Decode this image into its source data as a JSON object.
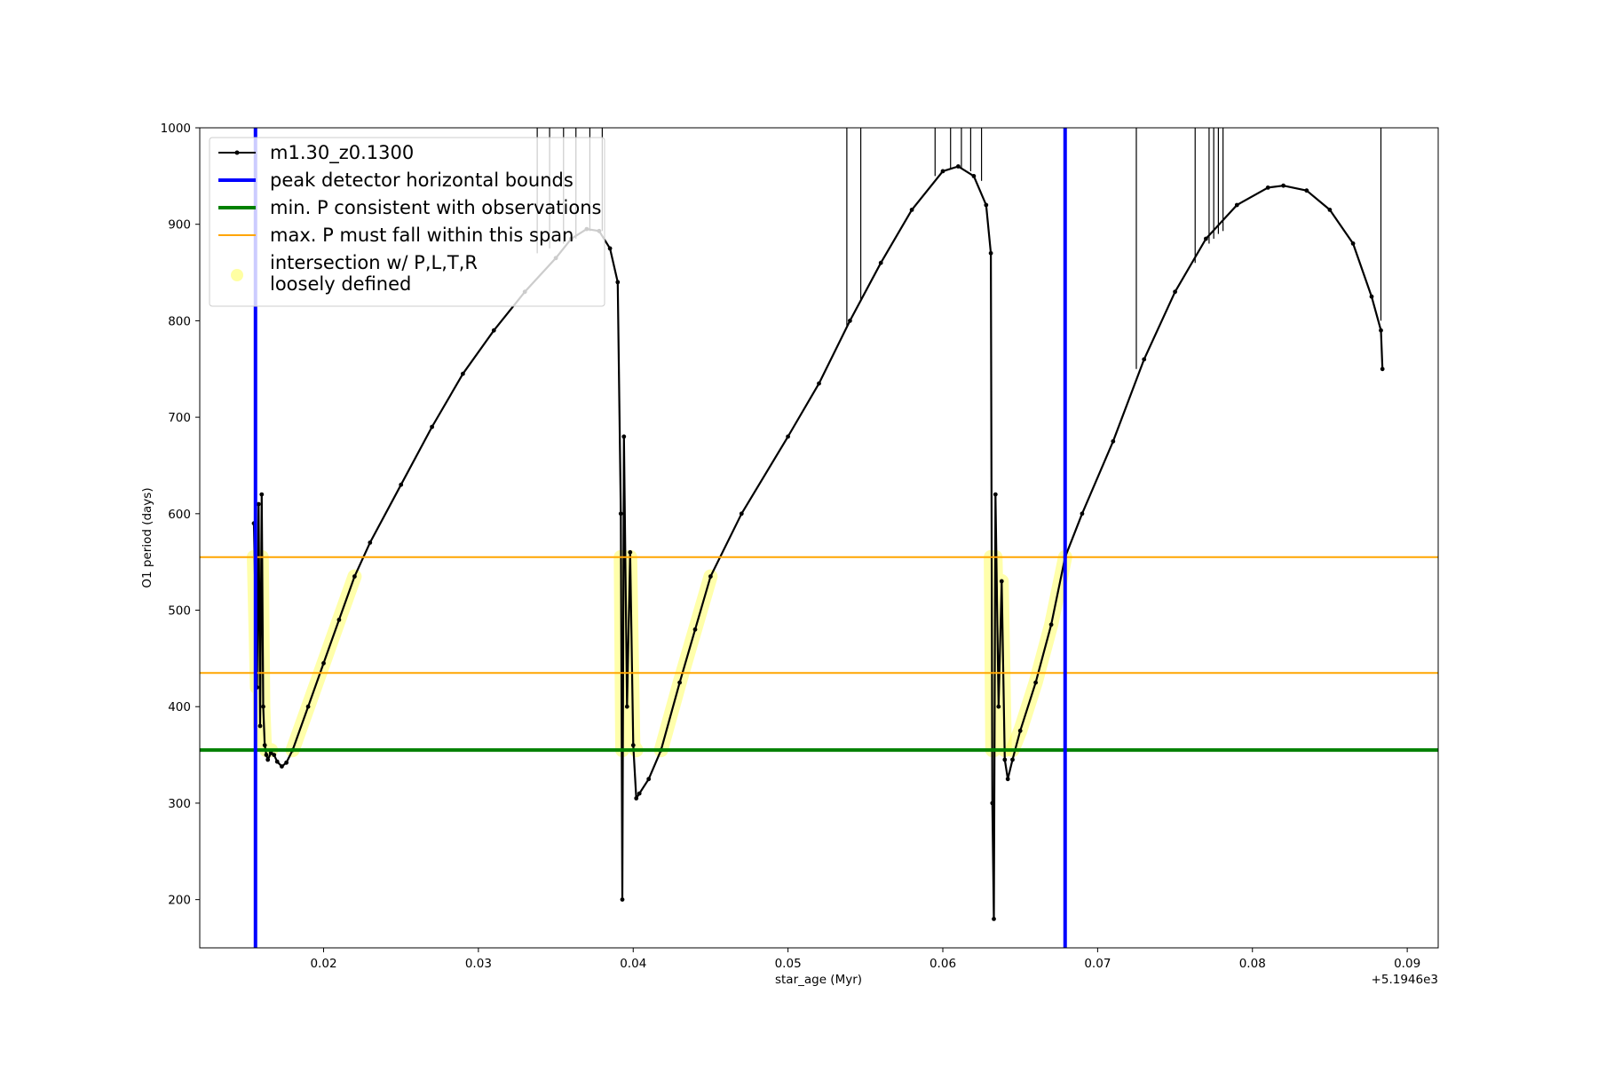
{
  "chart_data": {
    "type": "line",
    "xlabel": "star_age (Myr)",
    "ylabel": "O1 period (days)",
    "x_offset_label": "+5.1946e3",
    "xlim": [
      0.012,
      0.092
    ],
    "ylim": [
      150,
      1000
    ],
    "x_ticks": [
      0.02,
      0.03,
      0.04,
      0.05,
      0.06,
      0.07,
      0.08,
      0.09
    ],
    "x_tick_labels": [
      "0.02",
      "0.03",
      "0.04",
      "0.05",
      "0.06",
      "0.07",
      "0.08",
      "0.09"
    ],
    "y_ticks": [
      200,
      300,
      400,
      500,
      600,
      700,
      800,
      900,
      1000
    ],
    "y_tick_labels": [
      "200",
      "300",
      "400",
      "500",
      "600",
      "700",
      "800",
      "900",
      "1000"
    ],
    "grid": false,
    "legend_position": "top-left",
    "legend": [
      {
        "label": "m1.30_z0.1300",
        "kind": "line-marker",
        "color": "#000000"
      },
      {
        "label": "peak detector horizontal bounds",
        "kind": "line",
        "color": "#0000ff"
      },
      {
        "label": "min. P consistent with observations",
        "kind": "line",
        "color": "#008000"
      },
      {
        "label": "max. P must fall within this span",
        "kind": "line",
        "color": "#ffa500"
      },
      {
        "label": "intersection w/ P,L,T,R\nloosely defined",
        "kind": "marker",
        "color": "#ffff66"
      }
    ],
    "vertical_lines": [
      {
        "name": "peak detector horizontal bounds",
        "x": 0.0156,
        "color": "#0000ff"
      },
      {
        "name": "peak detector horizontal bounds",
        "x": 0.0679,
        "color": "#0000ff"
      }
    ],
    "horizontal_lines": [
      {
        "name": "min. P consistent with observations",
        "y": 355,
        "color": "#008000"
      },
      {
        "name": "max. P must fall within this span",
        "y": 435,
        "color": "#ffa500"
      },
      {
        "name": "max. P must fall within this span",
        "y": 555,
        "color": "#ffa500"
      }
    ],
    "series": [
      {
        "name": "m1.30_z0.1300",
        "color": "#000000",
        "segments": [
          [
            [
              0.0155,
              590
            ],
            [
              0.0157,
              420
            ],
            [
              0.0158,
              610
            ],
            [
              0.0159,
              380
            ],
            [
              0.016,
              620
            ],
            [
              0.0161,
              400
            ],
            [
              0.0162,
              360
            ],
            [
              0.0163,
              350
            ],
            [
              0.0164,
              345
            ],
            [
              0.0166,
              352
            ],
            [
              0.0168,
              350
            ],
            [
              0.017,
              343
            ],
            [
              0.0173,
              338
            ],
            [
              0.0176,
              342
            ],
            [
              0.018,
              355
            ],
            [
              0.019,
              400
            ],
            [
              0.02,
              445
            ],
            [
              0.021,
              490
            ],
            [
              0.022,
              535
            ],
            [
              0.023,
              570
            ],
            [
              0.025,
              630
            ],
            [
              0.027,
              690
            ],
            [
              0.029,
              745
            ],
            [
              0.031,
              790
            ],
            [
              0.033,
              830
            ],
            [
              0.035,
              865
            ],
            [
              0.036,
              885
            ],
            [
              0.037,
              895
            ],
            [
              0.0378,
              893
            ],
            [
              0.0385,
              875
            ],
            [
              0.039,
              840
            ],
            [
              0.0392,
              600
            ],
            [
              0.0393,
              200
            ],
            [
              0.0394,
              680
            ],
            [
              0.0396,
              400
            ],
            [
              0.0398,
              560
            ],
            [
              0.04,
              360
            ],
            [
              0.0402,
              305
            ],
            [
              0.0404,
              310
            ],
            [
              0.041,
              325
            ],
            [
              0.0418,
              355
            ],
            [
              0.043,
              425
            ],
            [
              0.044,
              480
            ],
            [
              0.045,
              535
            ],
            [
              0.047,
              600
            ],
            [
              0.05,
              680
            ],
            [
              0.052,
              735
            ],
            [
              0.054,
              800
            ],
            [
              0.056,
              860
            ],
            [
              0.058,
              915
            ],
            [
              0.06,
              955
            ],
            [
              0.061,
              960
            ],
            [
              0.062,
              950
            ],
            [
              0.0628,
              920
            ],
            [
              0.0631,
              870
            ],
            [
              0.0632,
              300
            ],
            [
              0.0633,
              180
            ],
            [
              0.0634,
              620
            ],
            [
              0.0636,
              400
            ],
            [
              0.0638,
              530
            ],
            [
              0.064,
              345
            ],
            [
              0.0642,
              325
            ],
            [
              0.0645,
              345
            ],
            [
              0.065,
              375
            ],
            [
              0.066,
              425
            ],
            [
              0.067,
              485
            ],
            [
              0.0679,
              555
            ],
            [
              0.069,
              600
            ],
            [
              0.071,
              675
            ],
            [
              0.073,
              760
            ],
            [
              0.075,
              830
            ],
            [
              0.077,
              885
            ],
            [
              0.079,
              920
            ],
            [
              0.081,
              938
            ],
            [
              0.082,
              940
            ],
            [
              0.0835,
              935
            ],
            [
              0.085,
              915
            ],
            [
              0.0865,
              880
            ],
            [
              0.0877,
              825
            ],
            [
              0.0883,
              790
            ],
            [
              0.0884,
              750
            ]
          ]
        ]
      }
    ],
    "spikes": [
      {
        "x": 0.0338,
        "y0": 870,
        "y1": 1000
      },
      {
        "x": 0.0346,
        "y0": 875,
        "y1": 1000
      },
      {
        "x": 0.0355,
        "y0": 880,
        "y1": 1000
      },
      {
        "x": 0.0363,
        "y0": 885,
        "y1": 1000
      },
      {
        "x": 0.0372,
        "y0": 893,
        "y1": 1000
      },
      {
        "x": 0.038,
        "y0": 893,
        "y1": 1000
      },
      {
        "x": 0.0538,
        "y0": 795,
        "y1": 1000
      },
      {
        "x": 0.0547,
        "y0": 820,
        "y1": 1000
      },
      {
        "x": 0.0595,
        "y0": 950,
        "y1": 1000
      },
      {
        "x": 0.0605,
        "y0": 958,
        "y1": 1000
      },
      {
        "x": 0.0612,
        "y0": 958,
        "y1": 1000
      },
      {
        "x": 0.0618,
        "y0": 955,
        "y1": 1000
      },
      {
        "x": 0.0625,
        "y0": 945,
        "y1": 1000
      },
      {
        "x": 0.0725,
        "y0": 750,
        "y1": 1000
      },
      {
        "x": 0.0763,
        "y0": 860,
        "y1": 1000
      },
      {
        "x": 0.0772,
        "y0": 880,
        "y1": 1000
      },
      {
        "x": 0.0775,
        "y0": 885,
        "y1": 1000
      },
      {
        "x": 0.0778,
        "y0": 890,
        "y1": 1000
      },
      {
        "x": 0.0781,
        "y0": 893,
        "y1": 1000
      },
      {
        "x": 0.0883,
        "y0": 800,
        "y1": 1000
      }
    ],
    "highlight_ranges": [
      {
        "name": "intersection w/ P,L,T,R loosely defined",
        "x": [
          0.0155,
          0.0166
        ],
        "y": [
          355,
          555
        ]
      },
      {
        "name": "intersection w/ P,L,T,R loosely defined",
        "x": [
          0.018,
          0.0222
        ],
        "y": [
          355,
          555
        ]
      },
      {
        "name": "intersection w/ P,L,T,R loosely defined",
        "x": [
          0.0391,
          0.0402
        ],
        "y": [
          355,
          555
        ]
      },
      {
        "name": "intersection w/ P,L,T,R loosely defined",
        "x": [
          0.0418,
          0.0454
        ],
        "y": [
          355,
          555
        ]
      },
      {
        "name": "intersection w/ P,L,T,R loosely defined",
        "x": [
          0.063,
          0.0641
        ],
        "y": [
          355,
          555
        ]
      },
      {
        "name": "intersection w/ P,L,T,R loosely defined",
        "x": [
          0.0645,
          0.0679
        ],
        "y": [
          355,
          555
        ]
      }
    ]
  }
}
